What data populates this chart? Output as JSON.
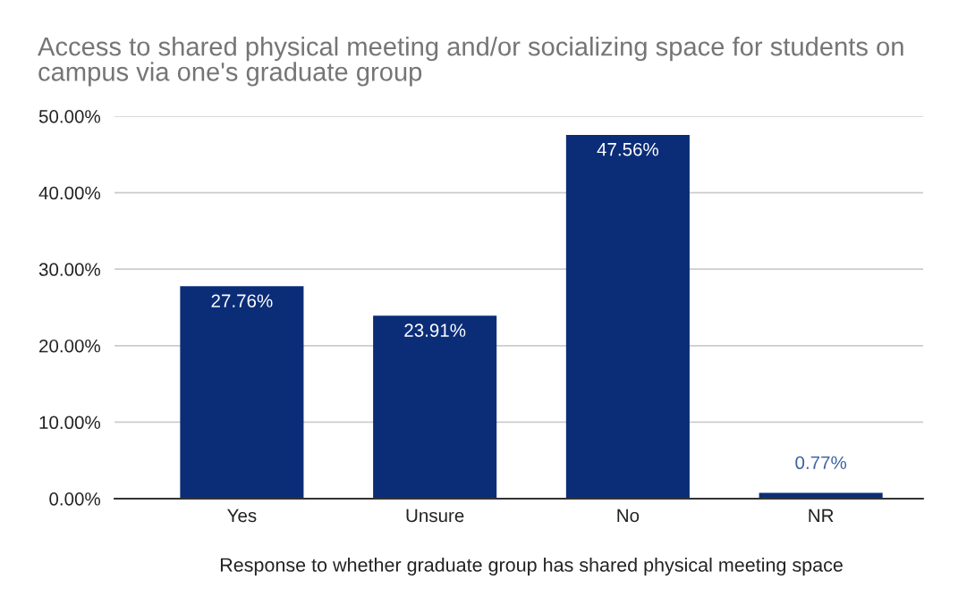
{
  "chart_data": {
    "type": "bar",
    "title": "Access to shared physical meeting and/or socializing space for students on\ncampus via one's graduate group",
    "xlabel": "Response to whether graduate group has shared physical meeting space",
    "categories": [
      "Yes",
      "Unsure",
      "No",
      "NR"
    ],
    "values": [
      27.76,
      23.91,
      47.56,
      0.77
    ],
    "value_labels": [
      "27.76%",
      "23.91%",
      "47.56%",
      "0.77%"
    ],
    "color": "#0b2d78",
    "ylim": [
      0,
      50
    ],
    "yticks": [
      {
        "value": 0,
        "label": "0.00%"
      },
      {
        "value": 10,
        "label": "10.00%"
      },
      {
        "value": 20,
        "label": "20.00%"
      },
      {
        "value": 30,
        "label": "30.00%"
      },
      {
        "value": 40,
        "label": "40.00%"
      },
      {
        "value": 50,
        "label": "50.00%"
      }
    ],
    "grid": "y"
  }
}
